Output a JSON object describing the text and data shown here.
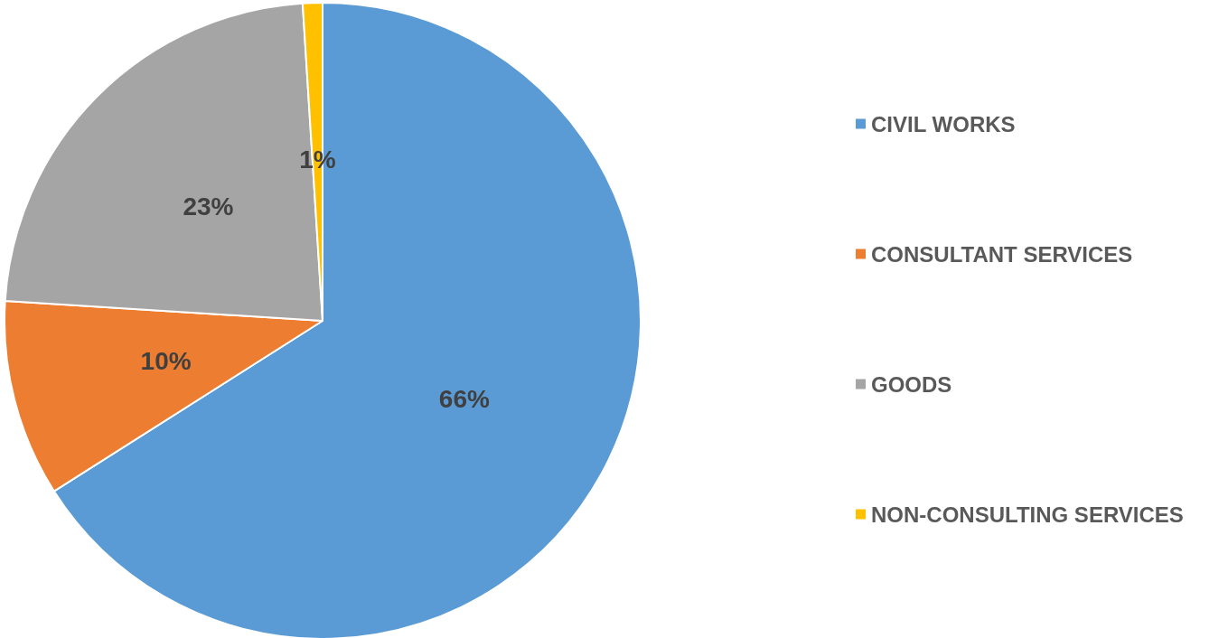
{
  "chart_data": {
    "type": "pie",
    "categories": [
      "CIVIL WORKS",
      "CONSULTANT SERVICES",
      "GOODS",
      "NON-CONSULTING SERVICES"
    ],
    "values": [
      66,
      10,
      23,
      1
    ],
    "colors": [
      "#5b9bd5",
      "#ed7d31",
      "#a5a5a5",
      "#ffc000"
    ],
    "value_labels": [
      "66%",
      "10%",
      "23%",
      "1%"
    ],
    "legend": "right"
  }
}
